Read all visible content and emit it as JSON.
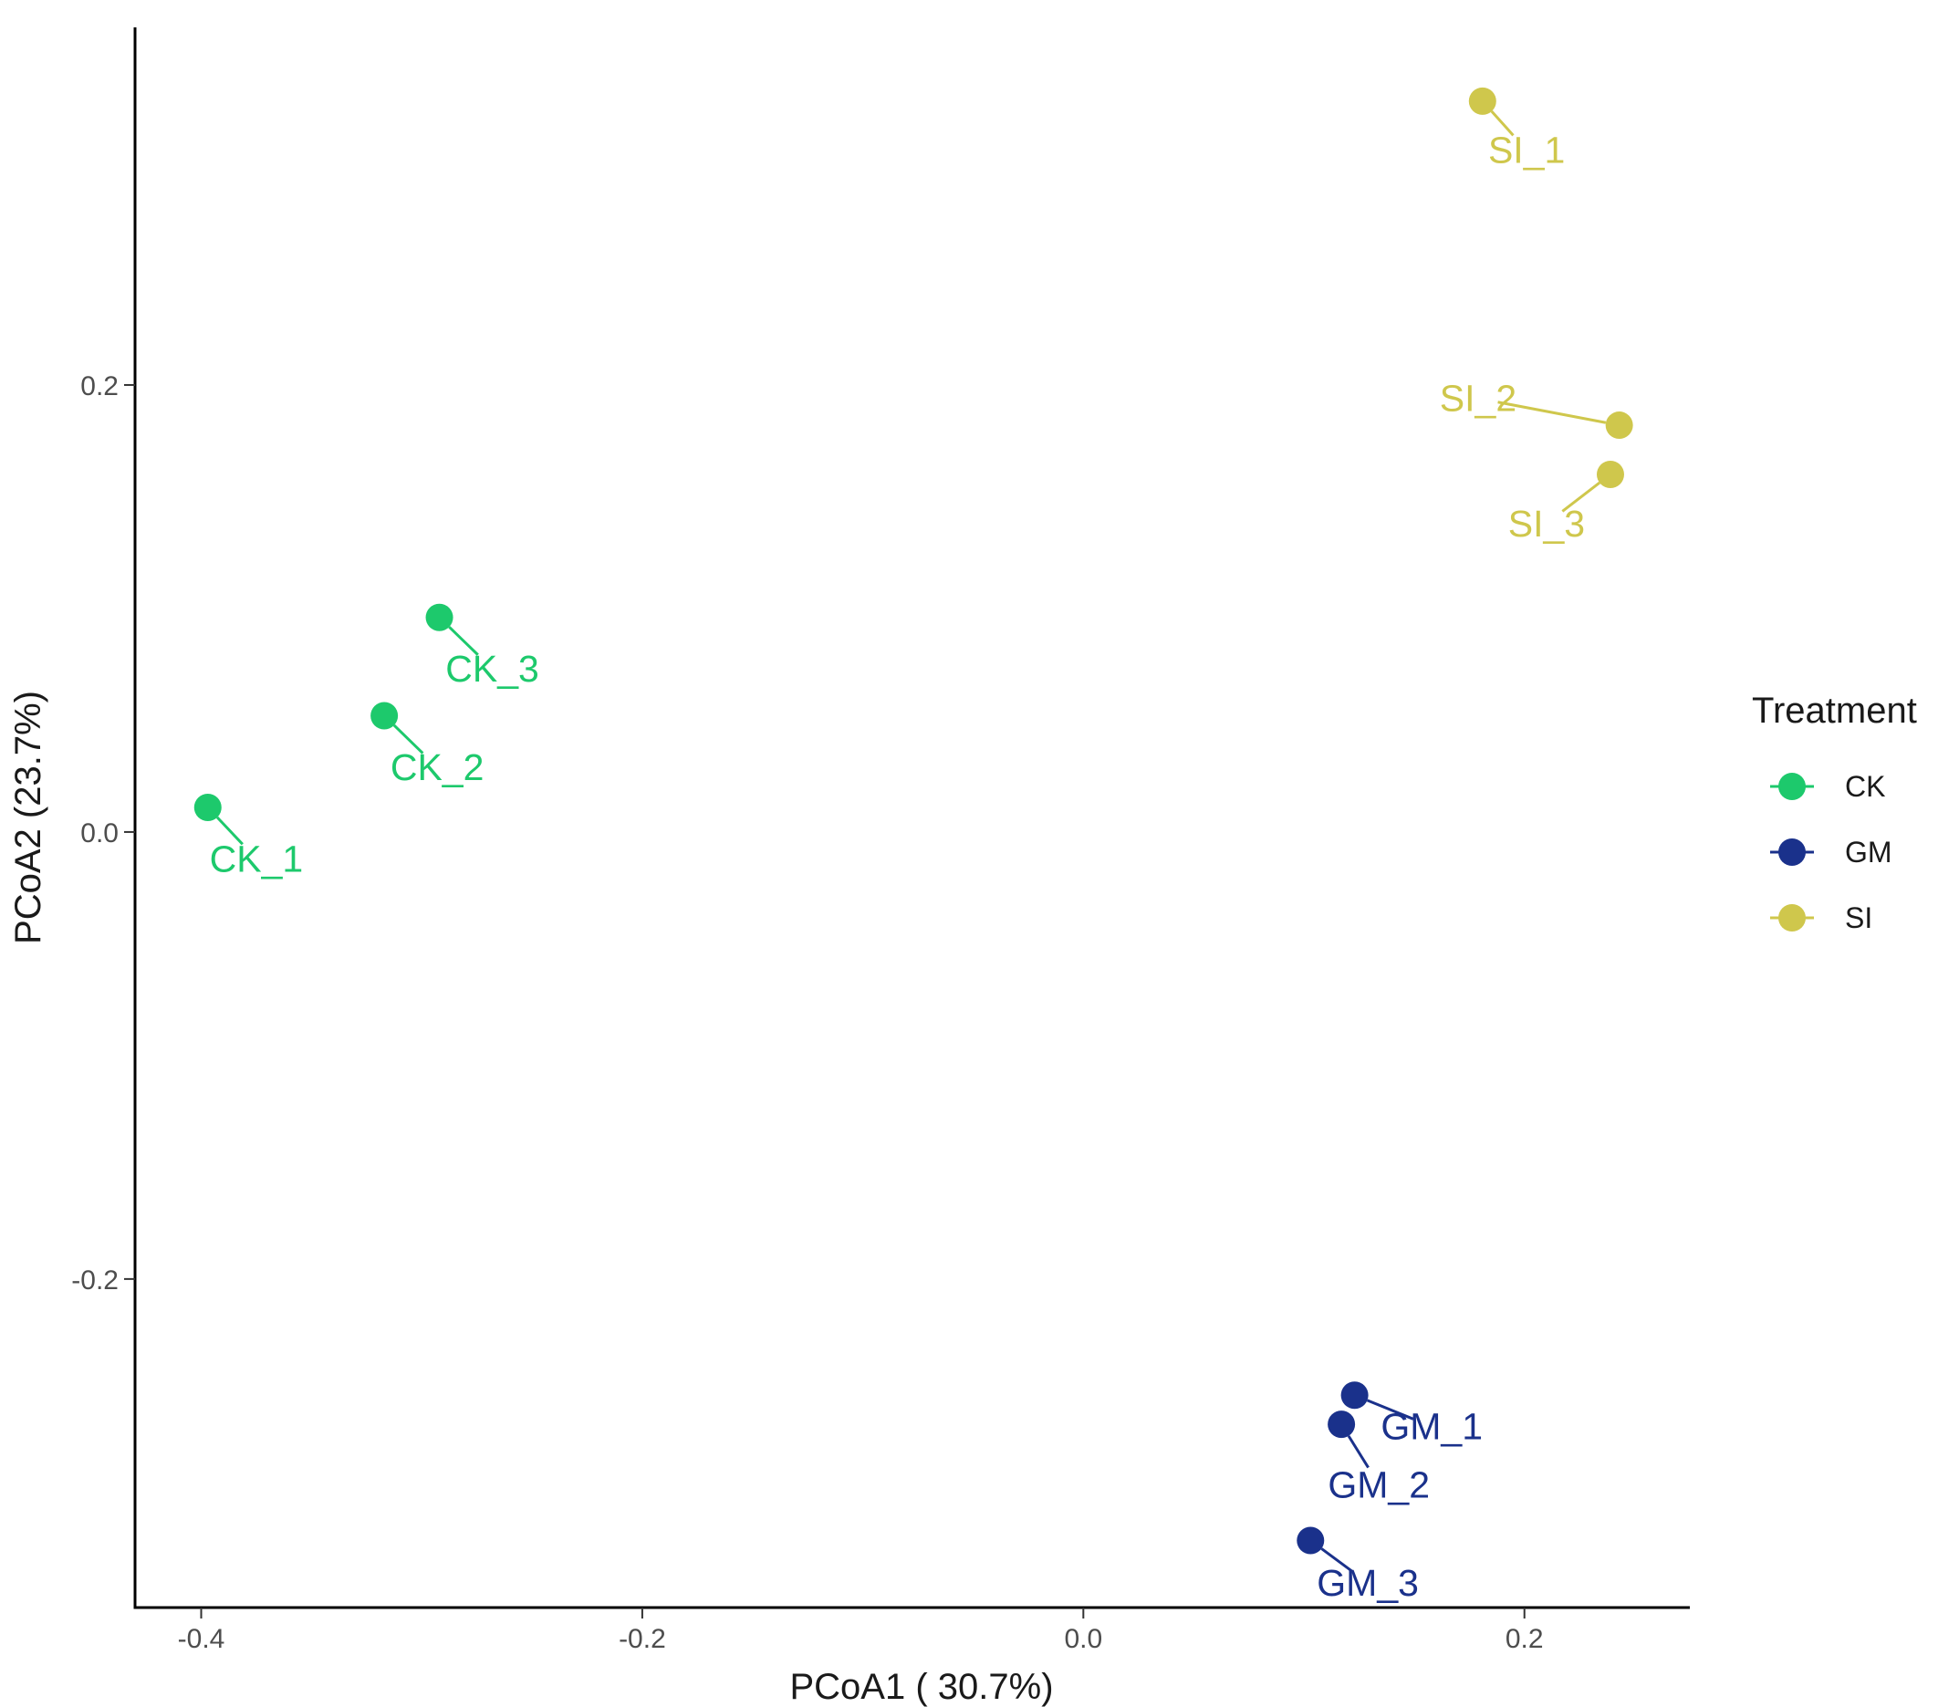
{
  "chart_data": {
    "type": "scatter",
    "title": "",
    "xlabel": "PCoA1 ( 30.7%)",
    "ylabel": "PCoA2 (23.7%)",
    "xlim": [
      -0.43,
      0.275
    ],
    "ylim": [
      -0.347,
      0.36
    ],
    "xticks": [
      -0.4,
      -0.2,
      0.0,
      0.2
    ],
    "xtick_labels": [
      "-0.4",
      "-0.2",
      "0.0",
      "0.2"
    ],
    "yticks": [
      -0.2,
      0.0,
      0.2
    ],
    "ytick_labels": [
      "-0.2",
      "0.0",
      "0.2"
    ],
    "grid": false,
    "legend": {
      "title": "Treatment",
      "position": "right",
      "entries": [
        {
          "name": "CK",
          "color": "#1dc96c"
        },
        {
          "name": "GM",
          "color": "#1a318b"
        },
        {
          "name": "SI",
          "color": "#cfc74c"
        }
      ]
    },
    "series": [
      {
        "name": "CK",
        "color": "#1dc96c",
        "points": [
          {
            "label": "CK_1",
            "x": -0.397,
            "y": 0.011,
            "lx": -0.375,
            "ly": -0.012
          },
          {
            "label": "CK_2",
            "x": -0.317,
            "y": 0.052,
            "lx": -0.293,
            "ly": 0.029
          },
          {
            "label": "CK_3",
            "x": -0.292,
            "y": 0.096,
            "lx": -0.268,
            "ly": 0.073
          }
        ]
      },
      {
        "name": "GM",
        "color": "#1a318b",
        "points": [
          {
            "label": "GM_1",
            "x": 0.123,
            "y": -0.252,
            "lx": 0.158,
            "ly": -0.266
          },
          {
            "label": "GM_2",
            "x": 0.117,
            "y": -0.265,
            "lx": 0.134,
            "ly": -0.292
          },
          {
            "label": "GM_3",
            "x": 0.103,
            "y": -0.317,
            "lx": 0.129,
            "ly": -0.336
          }
        ]
      },
      {
        "name": "SI",
        "color": "#cfc74c",
        "points": [
          {
            "label": "SI_1",
            "x": 0.181,
            "y": 0.327,
            "lx": 0.201,
            "ly": 0.305
          },
          {
            "label": "SI_2",
            "x": 0.243,
            "y": 0.182,
            "lx": 0.179,
            "ly": 0.194
          },
          {
            "label": "SI_3",
            "x": 0.239,
            "y": 0.16,
            "lx": 0.21,
            "ly": 0.138
          }
        ]
      }
    ]
  }
}
